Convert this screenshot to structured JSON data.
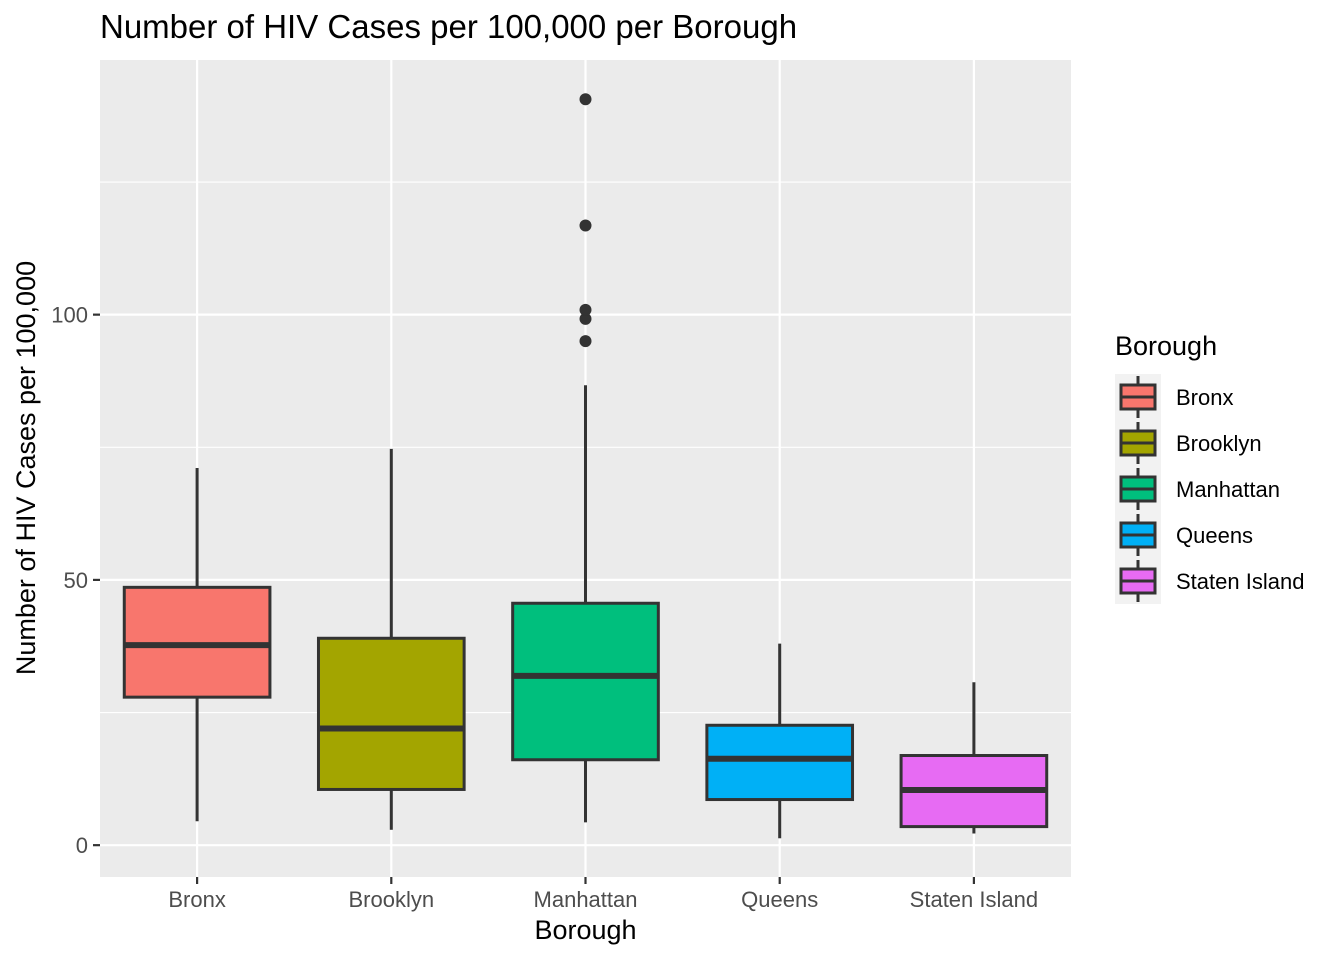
{
  "chart_data": {
    "type": "boxplot",
    "title": "Number of HIV Cases per 100,000 per Borough",
    "xlabel": "Borough",
    "ylabel": "Number of HIV Cases per 100,000",
    "ylim": [
      -6,
      148
    ],
    "yticks": [
      0,
      50,
      100
    ],
    "ytick_labels": [
      "0",
      "50",
      "100"
    ],
    "grid": true,
    "legend": {
      "title": "Borough",
      "placement": "right"
    },
    "categories": [
      "Bronx",
      "Brooklyn",
      "Manhattan",
      "Queens",
      "Staten Island"
    ],
    "colors": [
      "#F8766D",
      "#A3A500",
      "#00BF7D",
      "#00B0F6",
      "#E76BF3"
    ],
    "boxes": [
      {
        "name": "Bronx",
        "min": 4.5,
        "q1": 27.9,
        "median": 37.7,
        "q3": 48.6,
        "max": 71.1,
        "outliers": []
      },
      {
        "name": "Brooklyn",
        "min": 2.9,
        "q1": 10.5,
        "median": 22.0,
        "q3": 39.0,
        "max": 74.7,
        "outliers": []
      },
      {
        "name": "Manhattan",
        "min": 4.3,
        "q1": 16.1,
        "median": 31.9,
        "q3": 45.6,
        "max": 86.7,
        "outliers": [
          95.0,
          99.2,
          100.9,
          116.8,
          140.6
        ]
      },
      {
        "name": "Queens",
        "min": 1.3,
        "q1": 8.6,
        "median": 16.3,
        "q3": 22.6,
        "max": 38.0,
        "outliers": []
      },
      {
        "name": "Staten Island",
        "min": 2.2,
        "q1": 3.5,
        "median": 10.4,
        "q3": 16.9,
        "max": 30.7,
        "outliers": []
      }
    ]
  }
}
